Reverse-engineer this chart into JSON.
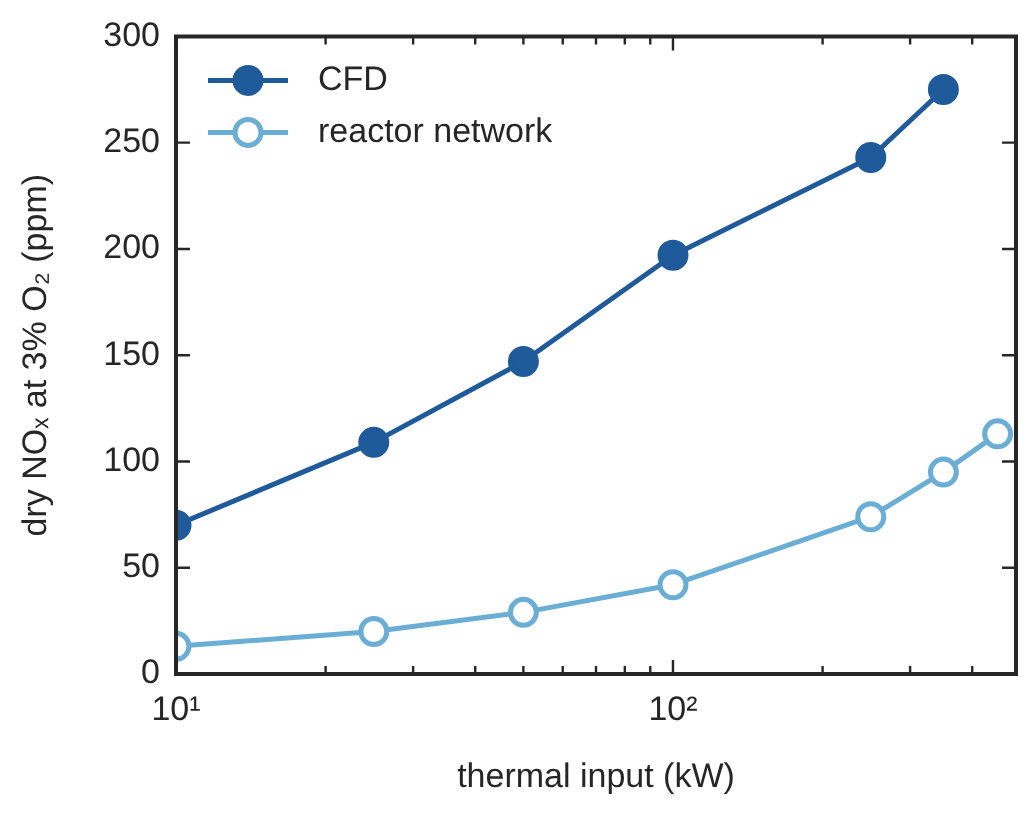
{
  "chart_data": {
    "type": "line",
    "xlabel": "thermal input (kW)",
    "ylabel": "dry NOₓ at 3% O₂ (ppm)",
    "log": "x",
    "xlim": [
      10,
      490
    ],
    "xticks": [
      {
        "value": 10,
        "label": "10¹"
      },
      {
        "value": 20,
        "label": null
      },
      {
        "value": 30,
        "label": null
      },
      {
        "value": 40,
        "label": null
      },
      {
        "value": 50,
        "label": null
      },
      {
        "value": 60,
        "label": null
      },
      {
        "value": 70,
        "label": null
      },
      {
        "value": 80,
        "label": null
      },
      {
        "value": 90,
        "label": null
      },
      {
        "value": 100,
        "label": "10²"
      },
      {
        "value": 200,
        "label": null
      },
      {
        "value": 300,
        "label": null
      },
      {
        "value": 400,
        "label": null
      }
    ],
    "ylim": [
      0,
      300
    ],
    "yticks": [
      0,
      50,
      100,
      150,
      200,
      250,
      300
    ],
    "grid": false,
    "legend": "top left",
    "marker": "circle",
    "line_style": "solid",
    "series": [
      {
        "name": "CFD",
        "color": "#1f5a9a",
        "x": [
          10,
          25,
          50,
          100,
          250,
          350
        ],
        "values": [
          70,
          109,
          147,
          197,
          243,
          275
        ]
      },
      {
        "name": "reactor network",
        "color": "#6aaed6",
        "x": [
          10,
          25,
          50,
          100,
          250,
          350,
          450
        ],
        "values": [
          13,
          20,
          29,
          42,
          74,
          95,
          113
        ]
      }
    ]
  }
}
